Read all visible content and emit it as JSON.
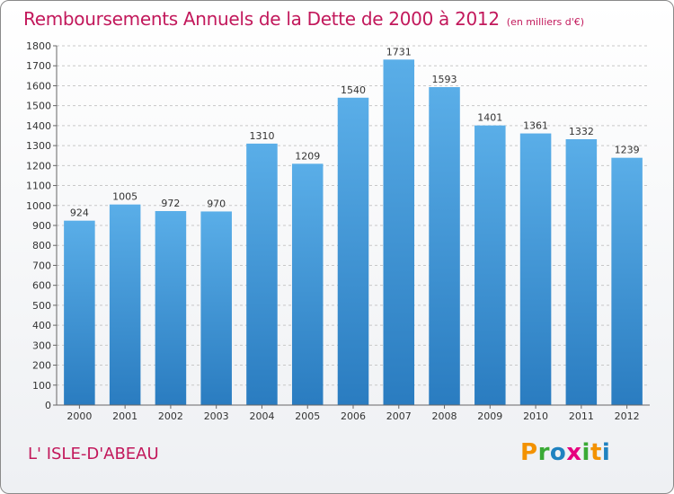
{
  "title": "Remboursements Annuels de la Dette de 2000 à 2012",
  "unit": "(en milliers d'€)",
  "place": "L' ISLE-D'ABEAU",
  "logo": {
    "text": "Proxiti",
    "colors": [
      "#f39200",
      "#3aaa35",
      "#1f82c0",
      "#e6007e",
      "#3aaa35",
      "#f39200",
      "#1f82c0"
    ]
  },
  "chart_data": {
    "type": "bar",
    "categories": [
      "2000",
      "2001",
      "2002",
      "2003",
      "2004",
      "2005",
      "2006",
      "2007",
      "2008",
      "2009",
      "2010",
      "2011",
      "2012"
    ],
    "values": [
      924,
      1005,
      972,
      970,
      1310,
      1209,
      1540,
      1731,
      1593,
      1401,
      1361,
      1332,
      1239
    ],
    "ylim": [
      0,
      1800
    ],
    "ytick_step": 100,
    "grid": true,
    "bar_color_top": "#5aaee8",
    "bar_color_bottom": "#2a7cc0"
  }
}
